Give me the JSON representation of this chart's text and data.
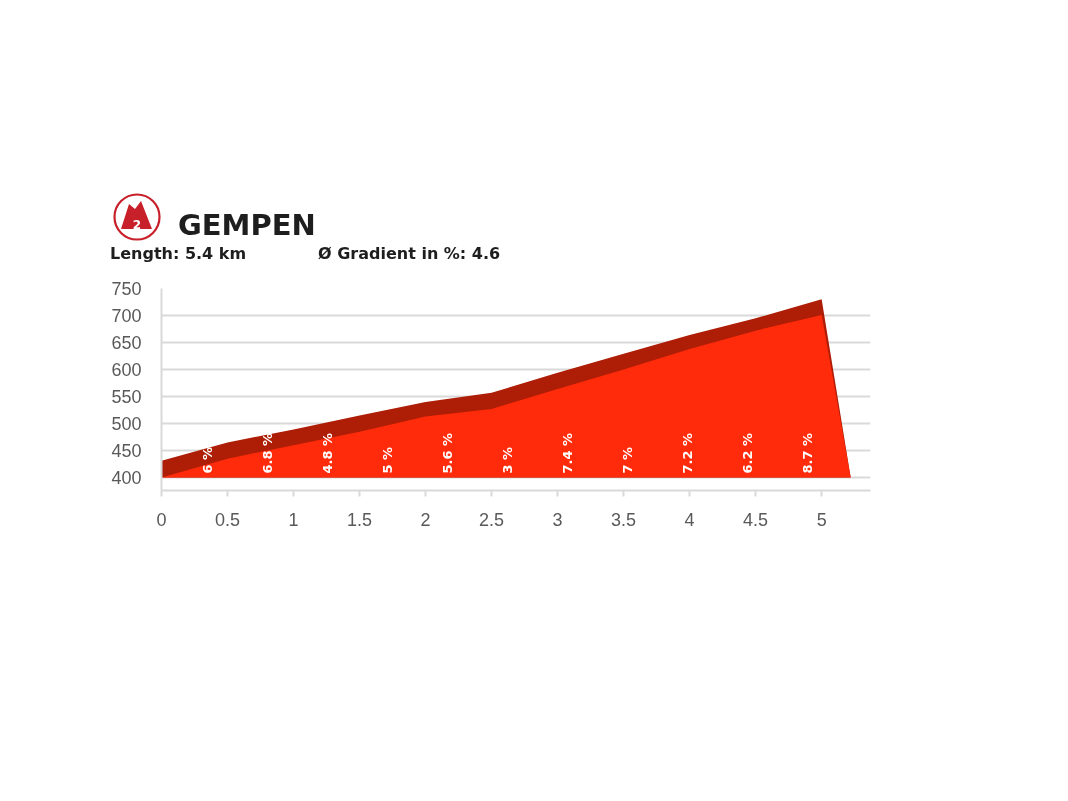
{
  "chart_data": {
    "type": "area",
    "title": "GEMPEN",
    "subtitle": "Length: 5.4 km",
    "annotations": [
      "Ø Gradient in %: 4.6",
      "2",
      "6 %",
      "6.8 %",
      "4.8 %",
      "5 %",
      "5.6 %",
      "3 %",
      "7.4 %",
      "7 %",
      "7.2 %",
      "6.2 %",
      "8.7 %"
    ],
    "x": [
      0,
      0.5,
      1,
      1.5,
      2,
      2.5,
      3,
      3.5,
      4,
      4.5,
      5,
      5.22
    ],
    "series": [
      {
        "color": "#ae1d05",
        "values": [
          431,
          465,
          489,
          515,
          540,
          557,
          594,
          629,
          664,
          695,
          730,
          400
        ]
      },
      {
        "color": "#ff2b0b",
        "values": [
          400,
          435,
          460,
          485,
          513,
          527,
          564,
          600,
          638,
          672,
          701,
          400
        ]
      }
    ],
    "xlim": [
      0,
      5.37
    ],
    "ylim": [
      376,
      750
    ],
    "xticks": [
      0,
      0.5,
      1,
      1.5,
      2,
      2.5,
      3,
      3.5,
      4,
      4.5,
      5
    ],
    "yticks": [
      400,
      450,
      500,
      550,
      600,
      650,
      700,
      750
    ],
    "grid": "y"
  }
}
